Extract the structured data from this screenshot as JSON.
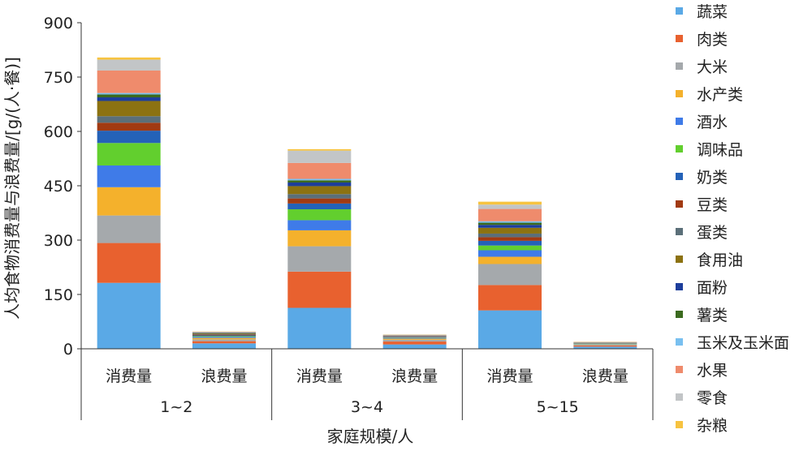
{
  "chart_data": {
    "type": "bar",
    "stacked": true,
    "ylabel": "人均食物消费量与浪费量/[g/(人·餐)]",
    "xlabel": "家庭规模/人",
    "ylim": [
      0,
      900
    ],
    "yticks": [
      "0",
      "150",
      "300",
      "450",
      "600",
      "750",
      "900"
    ],
    "groups": [
      "1~2",
      "3~4",
      "5~15"
    ],
    "sub_categories": [
      "消费量",
      "浪费量",
      "消费量",
      "浪费量",
      "消费量",
      "浪费量"
    ],
    "legend_position": "right",
    "series": [
      {
        "name": "蔬菜",
        "color": "#5aa9e6",
        "values": [
          182,
          15,
          113,
          12,
          106,
          6
        ]
      },
      {
        "name": "肉类",
        "color": "#e8612f",
        "values": [
          110,
          6,
          100,
          8,
          70,
          3
        ]
      },
      {
        "name": "大米",
        "color": "#a5a9ac",
        "values": [
          76,
          5,
          70,
          5,
          58,
          2
        ]
      },
      {
        "name": "水产类",
        "color": "#f4b12c",
        "values": [
          78,
          4,
          44,
          3,
          20,
          1
        ]
      },
      {
        "name": "酒水",
        "color": "#3f7be8",
        "values": [
          60,
          3,
          28,
          2,
          18,
          1
        ]
      },
      {
        "name": "调味品",
        "color": "#62cf2e",
        "values": [
          62,
          2,
          30,
          1,
          13,
          1
        ]
      },
      {
        "name": "奶类",
        "color": "#2462b8",
        "values": [
          34,
          2,
          16,
          1,
          13,
          0.5
        ]
      },
      {
        "name": "豆类",
        "color": "#a13a12",
        "values": [
          22,
          2,
          14,
          1,
          10,
          0.5
        ]
      },
      {
        "name": "蛋类",
        "color": "#5b6f79",
        "values": [
          18,
          2,
          12,
          1,
          10,
          0.5
        ]
      },
      {
        "name": "食用油",
        "color": "#8c7211",
        "values": [
          42,
          2,
          22,
          1,
          16,
          0.5
        ]
      },
      {
        "name": "面粉",
        "color": "#1d3e9c",
        "values": [
          10,
          1,
          10,
          1,
          8,
          0.5
        ]
      },
      {
        "name": "薯类",
        "color": "#3b6a1f",
        "values": [
          8,
          1,
          6,
          0.5,
          6,
          0.5
        ]
      },
      {
        "name": "玉米及玉米面",
        "color": "#79c0f0",
        "values": [
          4,
          0.5,
          4,
          0.5,
          4,
          0.5
        ]
      },
      {
        "name": "水果",
        "color": "#ef8b6c",
        "values": [
          62,
          1,
          44,
          1,
          34,
          1
        ]
      },
      {
        "name": "零食",
        "color": "#c2c5c7",
        "values": [
          30,
          1,
          34,
          1,
          12,
          0.5
        ]
      },
      {
        "name": "杂粮",
        "color": "#f7c340",
        "values": [
          6,
          0.5,
          4,
          0.5,
          8,
          0.5
        ]
      }
    ]
  }
}
